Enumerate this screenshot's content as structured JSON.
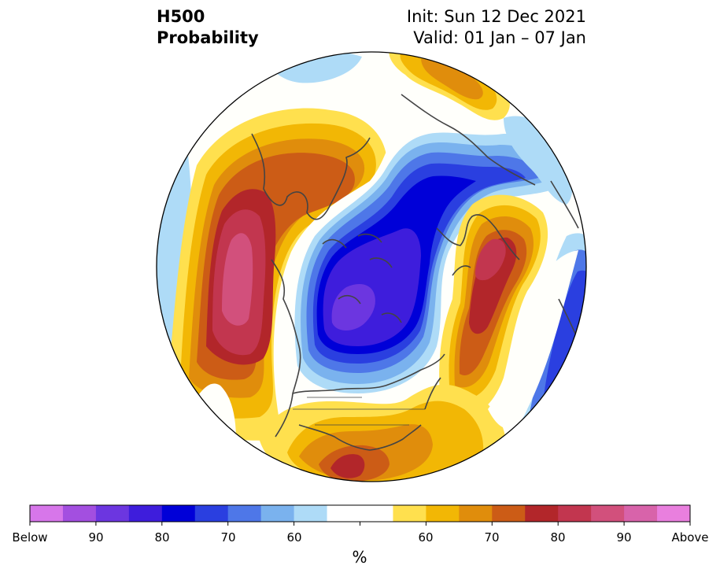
{
  "header": {
    "variable": "H500",
    "product": "Probability",
    "init": "Init: Sun 12 Dec 2021",
    "valid": "Valid: 01 Jan – 07 Jan"
  },
  "colorbar": {
    "colors": [
      "#d776ea",
      "#a34fe0",
      "#6c36e0",
      "#3e1ddc",
      "#0000d8",
      "#2a3fe0",
      "#4e77e8",
      "#7ab2ee",
      "#aedbf7",
      "#ffffff",
      "#ffffff",
      "#ffe04e",
      "#f2b705",
      "#e08d0c",
      "#cc5c16",
      "#b2262a",
      "#c2364f",
      "#d2507c",
      "#d863aa",
      "#e97fde"
    ],
    "tick_labels": [
      "Below",
      "90",
      "80",
      "70",
      "60",
      "60",
      "70",
      "80",
      "90",
      "Above"
    ],
    "units": "%"
  },
  "map": {
    "projection": "north polar stereographic",
    "colors": {
      "white": "#fffffb",
      "lightblue": "#aedbf7",
      "blue1": "#7ab2ee",
      "blue2": "#4e77e8",
      "blue3": "#2a3fe0",
      "blue4": "#0000d8",
      "blue5": "#3e1ddc",
      "purple": "#6c36e0",
      "yellow": "#ffe04e",
      "gold": "#f2b705",
      "orange": "#e08d0c",
      "darkorange": "#cc5c16",
      "red": "#b2262a",
      "crimson": "#c2364f",
      "pink": "#d2507c",
      "coast": "#444444"
    }
  }
}
